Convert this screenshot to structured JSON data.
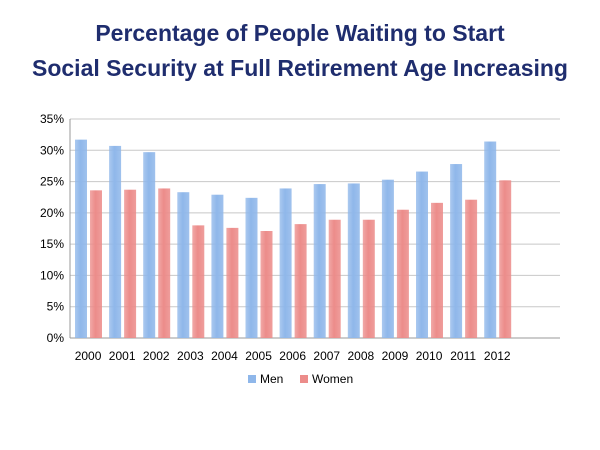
{
  "chart_data": {
    "type": "bar",
    "title": [
      "Percentage of People Waiting to Start",
      "Social Security at Full Retirement Age Increasing"
    ],
    "xlabel": "",
    "ylabel": "",
    "categories": [
      "2000",
      "2001",
      "2002",
      "2003",
      "2004",
      "2005",
      "2006",
      "2007",
      "2008",
      "2009",
      "2010",
      "2011",
      "2012"
    ],
    "series": [
      {
        "name": "Men",
        "color": "#8fb7ea",
        "values": [
          31.7,
          30.7,
          29.7,
          23.3,
          22.9,
          22.4,
          23.9,
          24.6,
          24.7,
          25.3,
          26.6,
          27.8,
          31.4
        ]
      },
      {
        "name": "Women",
        "color": "#ec8c8a",
        "values": [
          23.6,
          23.7,
          23.9,
          18.0,
          17.6,
          17.1,
          18.2,
          18.9,
          18.9,
          20.5,
          21.6,
          22.1,
          25.2
        ]
      }
    ],
    "ylim": [
      0,
      35
    ],
    "yticks": [
      "0%",
      "5%",
      "10%",
      "15%",
      "20%",
      "25%",
      "30%",
      "35%"
    ],
    "grid": true,
    "legend_position": "bottom"
  }
}
